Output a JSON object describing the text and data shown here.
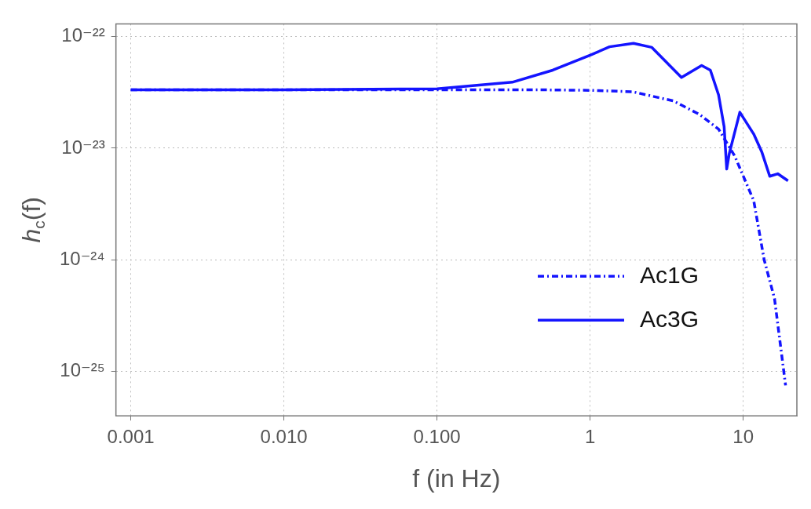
{
  "chart_data": {
    "type": "line",
    "xlabel": "f (in Hz)",
    "ylabel": "h$_{c}$(f)",
    "log": "xy",
    "grid": true,
    "legend": "right",
    "marker": "none",
    "xlim": [
      0.0008,
      22.4
    ],
    "xticks": [
      0.001,
      {
        "value": 0.01,
        "label": "0.010"
      },
      {
        "value": 0.1,
        "label": "0.100"
      },
      1,
      10
    ],
    "ylim": [
      4e-26,
      1.3e-22
    ],
    "yticks": [
      {
        "value": 1e-22,
        "label": "10⁻²²"
      },
      {
        "value": 1e-23,
        "label": "10⁻²³"
      },
      {
        "value": 1e-24,
        "label": "10⁻²⁴"
      },
      {
        "value": 1e-25,
        "label": "10⁻²⁵"
      }
    ],
    "series": [
      {
        "name": "Ac1G",
        "color": "#1414ff",
        "line_style": "dashdot",
        "x": [
          0.001,
          0.01,
          0.1,
          0.5,
          1,
          1.9,
          3.5,
          5.2,
          6.9,
          8.8,
          11.7,
          13.7,
          16,
          18.9
        ],
        "values": [
          3.33e-23,
          3.33e-23,
          3.33e-23,
          3.33e-23,
          3.3e-23,
          3.2e-23,
          2.65e-23,
          2e-23,
          1.48e-23,
          8.5e-24,
          3.4e-24,
          1e-24,
          4.5e-25,
          7.5e-26
        ]
      },
      {
        "name": "Ac3G",
        "color": "#1414ff",
        "line_style": "solid",
        "x": [
          0.001,
          0.01,
          0.1,
          0.31,
          0.57,
          1,
          1.34,
          1.92,
          2.53,
          3.95,
          5.35,
          6.1,
          6.9,
          7.5,
          7.8,
          8.1,
          9.5,
          11.7,
          13.2,
          14.9,
          16.8,
          19.6
        ],
        "values": [
          3.33e-23,
          3.33e-23,
          3.4e-23,
          3.9e-23,
          5e-23,
          6.8e-23,
          8.1e-23,
          8.7e-23,
          8e-23,
          4.3e-23,
          5.5e-23,
          5e-23,
          3e-23,
          1.56e-23,
          6.5e-24,
          8.9e-24,
          2.1e-23,
          1.34e-23,
          9.3e-24,
          5.6e-24,
          5.9e-24,
          5.1e-24
        ]
      }
    ]
  }
}
